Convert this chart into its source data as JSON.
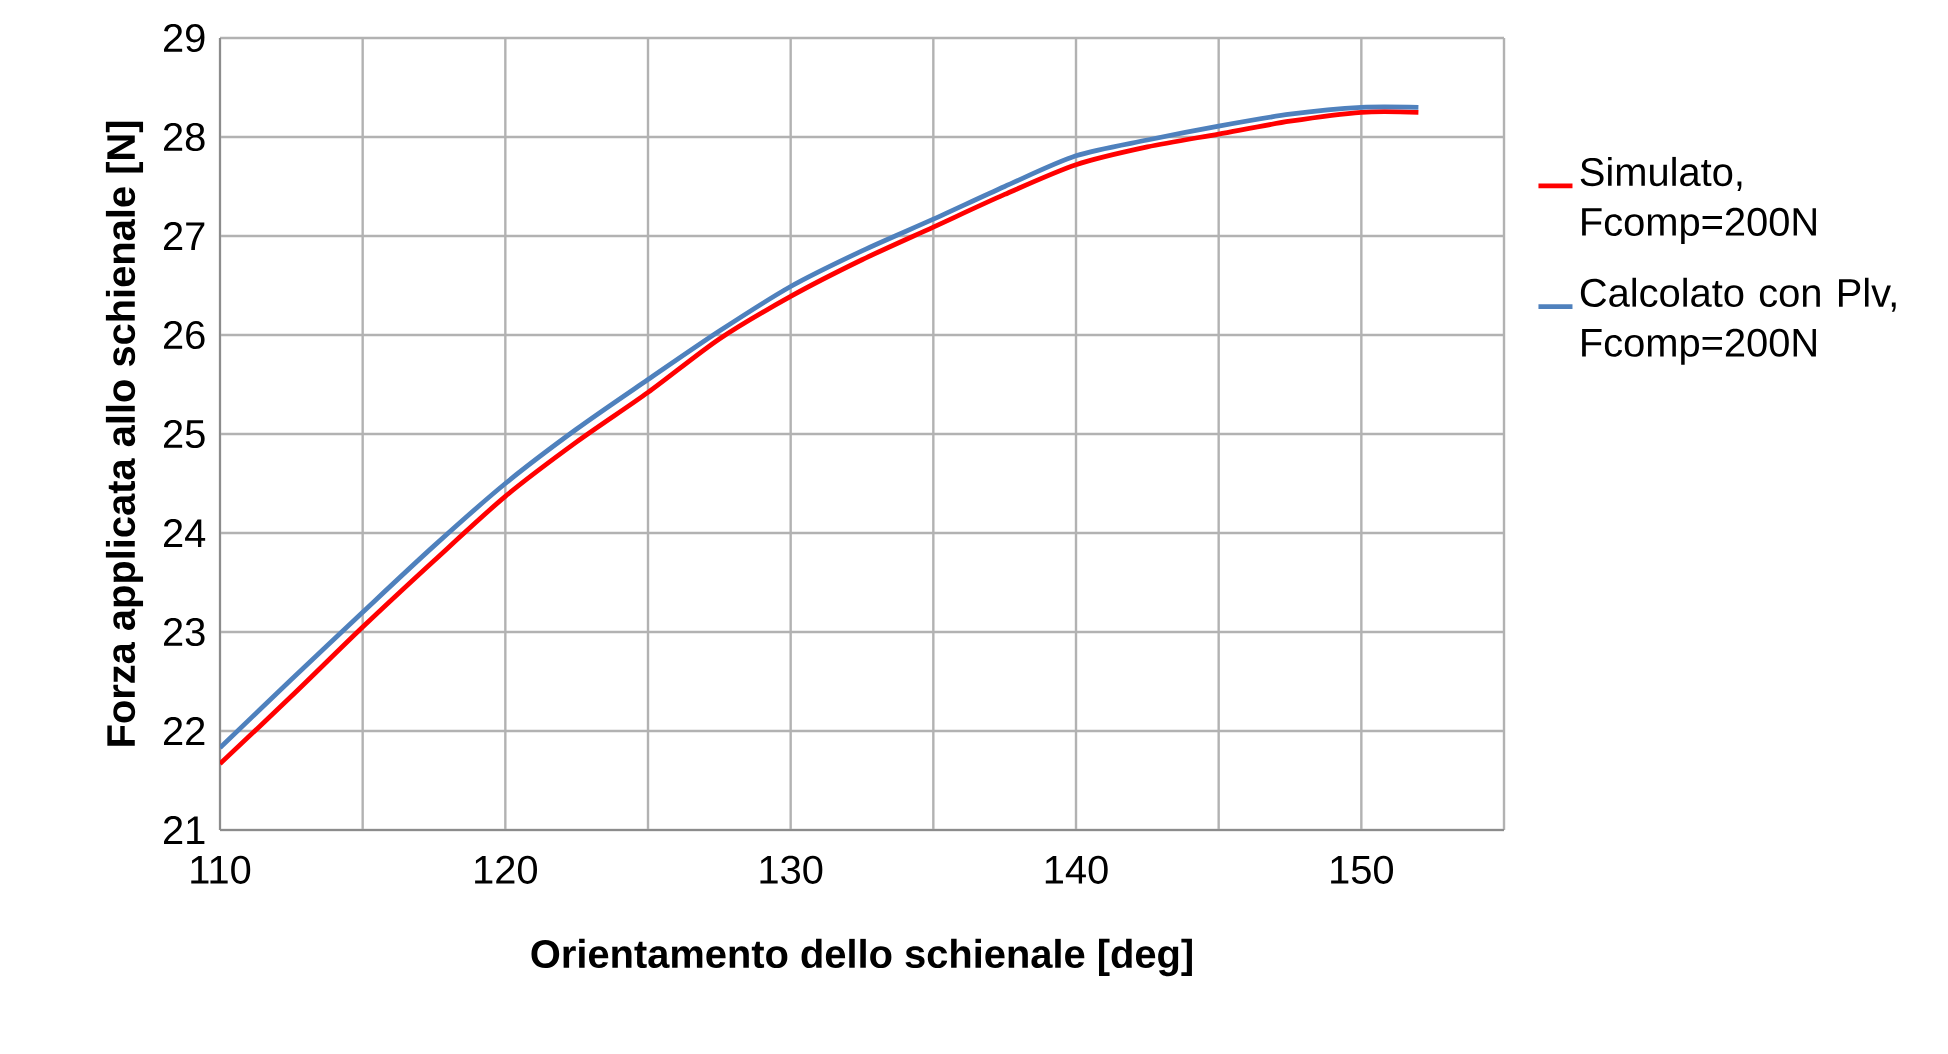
{
  "chart_data": {
    "type": "line",
    "xlabel": "Orientamento dello schienale [deg]",
    "ylabel": "Forza applicata allo schienale [N]",
    "x": [
      110,
      112.5,
      115,
      117.5,
      120,
      122.5,
      125,
      127.5,
      130,
      132.5,
      135,
      137.5,
      140,
      142.5,
      145,
      147.5,
      150,
      152
    ],
    "series": [
      {
        "name": "Simulato, Fcomp=200N",
        "color": "#ff0000",
        "values": [
          21.67,
          22.35,
          23.05,
          23.72,
          24.37,
          24.92,
          25.42,
          25.96,
          26.39,
          26.76,
          27.09,
          27.42,
          27.72,
          27.9,
          28.03,
          28.16,
          28.25,
          28.25
        ]
      },
      {
        "name": "Calcolato con Plv, Fcomp=200N",
        "color": "#4f81bd",
        "values": [
          21.83,
          22.52,
          23.2,
          23.87,
          24.5,
          25.05,
          25.55,
          26.04,
          26.49,
          26.85,
          27.17,
          27.5,
          27.81,
          27.97,
          28.11,
          28.23,
          28.3,
          28.3
        ]
      }
    ],
    "xlim": [
      110,
      155
    ],
    "ylim": [
      21,
      29
    ],
    "xticks": [
      110,
      {
        "value": 115,
        "label": null
      },
      120,
      {
        "value": 125,
        "label": null
      },
      130,
      {
        "value": 135,
        "label": null
      },
      140,
      {
        "value": 145,
        "label": null
      },
      150,
      {
        "value": 155,
        "label": null
      }
    ],
    "yticks": [
      21,
      22,
      23,
      24,
      25,
      26,
      27,
      28,
      29
    ],
    "grid": true,
    "legend": "right"
  }
}
